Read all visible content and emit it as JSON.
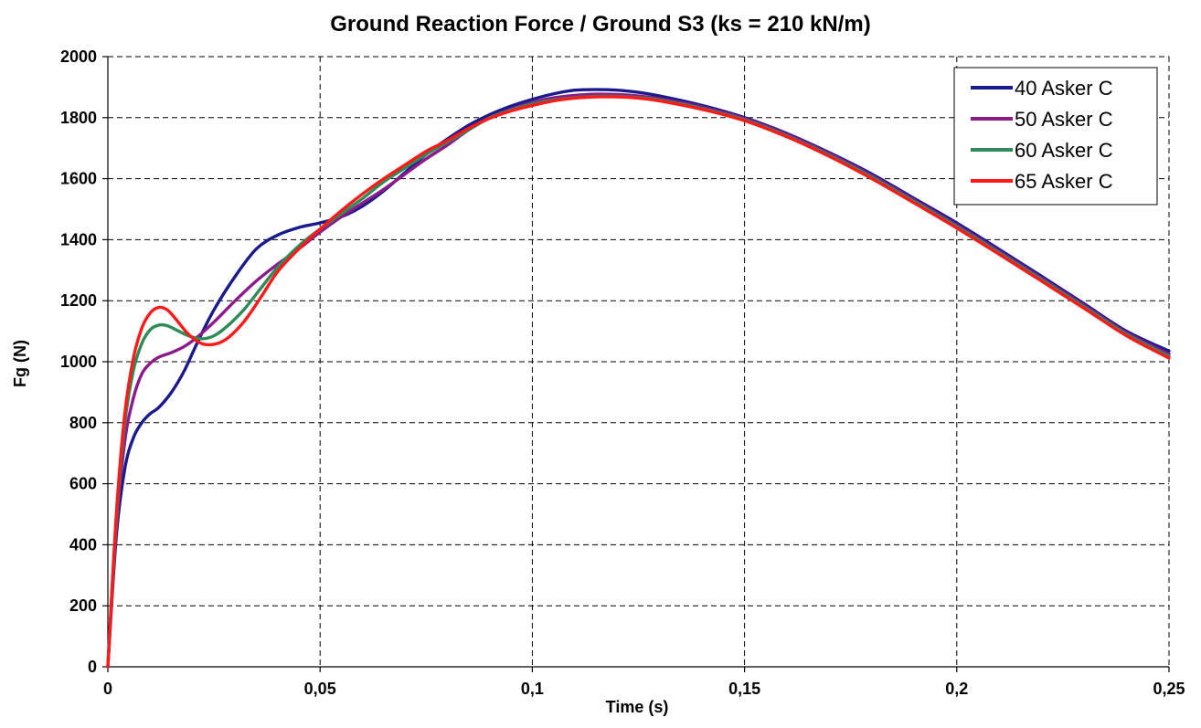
{
  "chart_data": {
    "type": "line",
    "title": "Ground Reaction Force / Ground S3 (ks = 210 kN/m)",
    "xlabel": "Time (s)",
    "ylabel": "Fg (N)",
    "xlim": [
      0,
      0.25
    ],
    "ylim": [
      0,
      2000
    ],
    "x_ticks": [
      0,
      0.05,
      0.1,
      0.15,
      0.2,
      0.25
    ],
    "x_tick_labels": [
      "0",
      "0,05",
      "0,1",
      "0,15",
      "0,2",
      "0,25"
    ],
    "y_ticks": [
      0,
      200,
      400,
      600,
      800,
      1000,
      1200,
      1400,
      1600,
      1800,
      2000
    ],
    "y_tick_labels": [
      "0",
      "200",
      "400",
      "600",
      "800",
      "1000",
      "1200",
      "1400",
      "1600",
      "1800",
      "2000"
    ],
    "grid": true,
    "legend_position": "top-right",
    "series": [
      {
        "name": "40 Asker C",
        "color": "#1a1a8c",
        "points": [
          [
            0,
            0
          ],
          [
            0.002,
            430
          ],
          [
            0.004,
            650
          ],
          [
            0.006,
            750
          ],
          [
            0.008,
            800
          ],
          [
            0.01,
            830
          ],
          [
            0.012,
            850
          ],
          [
            0.015,
            900
          ],
          [
            0.018,
            970
          ],
          [
            0.021,
            1060
          ],
          [
            0.025,
            1170
          ],
          [
            0.03,
            1280
          ],
          [
            0.035,
            1370
          ],
          [
            0.04,
            1415
          ],
          [
            0.045,
            1440
          ],
          [
            0.05,
            1455
          ],
          [
            0.055,
            1475
          ],
          [
            0.06,
            1510
          ],
          [
            0.065,
            1560
          ],
          [
            0.07,
            1620
          ],
          [
            0.075,
            1680
          ],
          [
            0.08,
            1730
          ],
          [
            0.085,
            1775
          ],
          [
            0.09,
            1810
          ],
          [
            0.095,
            1838
          ],
          [
            0.1,
            1860
          ],
          [
            0.105,
            1878
          ],
          [
            0.11,
            1890
          ],
          [
            0.115,
            1892
          ],
          [
            0.12,
            1890
          ],
          [
            0.125,
            1883
          ],
          [
            0.13,
            1871
          ],
          [
            0.14,
            1840
          ],
          [
            0.15,
            1800
          ],
          [
            0.16,
            1748
          ],
          [
            0.17,
            1685
          ],
          [
            0.18,
            1615
          ],
          [
            0.19,
            1535
          ],
          [
            0.2,
            1455
          ],
          [
            0.21,
            1368
          ],
          [
            0.22,
            1280
          ],
          [
            0.23,
            1190
          ],
          [
            0.24,
            1100
          ],
          [
            0.25,
            1035
          ]
        ]
      },
      {
        "name": "50 Asker C",
        "color": "#8b1a8b",
        "points": [
          [
            0,
            0
          ],
          [
            0.002,
            460
          ],
          [
            0.004,
            740
          ],
          [
            0.006,
            880
          ],
          [
            0.008,
            960
          ],
          [
            0.01,
            995
          ],
          [
            0.012,
            1015
          ],
          [
            0.015,
            1030
          ],
          [
            0.018,
            1050
          ],
          [
            0.021,
            1080
          ],
          [
            0.025,
            1130
          ],
          [
            0.03,
            1200
          ],
          [
            0.035,
            1265
          ],
          [
            0.04,
            1320
          ],
          [
            0.045,
            1370
          ],
          [
            0.05,
            1425
          ],
          [
            0.055,
            1475
          ],
          [
            0.06,
            1520
          ],
          [
            0.065,
            1565
          ],
          [
            0.07,
            1615
          ],
          [
            0.075,
            1665
          ],
          [
            0.08,
            1710
          ],
          [
            0.085,
            1760
          ],
          [
            0.09,
            1800
          ],
          [
            0.095,
            1828
          ],
          [
            0.1,
            1850
          ],
          [
            0.105,
            1865
          ],
          [
            0.11,
            1873
          ],
          [
            0.115,
            1877
          ],
          [
            0.12,
            1876
          ],
          [
            0.125,
            1871
          ],
          [
            0.13,
            1862
          ],
          [
            0.14,
            1835
          ],
          [
            0.15,
            1797
          ],
          [
            0.16,
            1745
          ],
          [
            0.17,
            1682
          ],
          [
            0.18,
            1610
          ],
          [
            0.19,
            1530
          ],
          [
            0.2,
            1448
          ],
          [
            0.21,
            1362
          ],
          [
            0.22,
            1274
          ],
          [
            0.23,
            1185
          ],
          [
            0.24,
            1095
          ],
          [
            0.25,
            1025
          ]
        ]
      },
      {
        "name": "60 Asker C",
        "color": "#2e8b57",
        "points": [
          [
            0,
            0
          ],
          [
            0.002,
            480
          ],
          [
            0.004,
            800
          ],
          [
            0.006,
            970
          ],
          [
            0.008,
            1060
          ],
          [
            0.01,
            1105
          ],
          [
            0.012,
            1120
          ],
          [
            0.014,
            1118
          ],
          [
            0.016,
            1105
          ],
          [
            0.019,
            1085
          ],
          [
            0.022,
            1075
          ],
          [
            0.025,
            1085
          ],
          [
            0.028,
            1115
          ],
          [
            0.032,
            1170
          ],
          [
            0.036,
            1240
          ],
          [
            0.04,
            1310
          ],
          [
            0.045,
            1380
          ],
          [
            0.05,
            1435
          ],
          [
            0.055,
            1485
          ],
          [
            0.06,
            1535
          ],
          [
            0.065,
            1590
          ],
          [
            0.07,
            1635
          ],
          [
            0.075,
            1680
          ],
          [
            0.08,
            1720
          ],
          [
            0.085,
            1760
          ],
          [
            0.09,
            1800
          ],
          [
            0.095,
            1825
          ],
          [
            0.1,
            1845
          ],
          [
            0.105,
            1858
          ],
          [
            0.11,
            1866
          ],
          [
            0.115,
            1870
          ],
          [
            0.12,
            1870
          ],
          [
            0.125,
            1866
          ],
          [
            0.13,
            1858
          ],
          [
            0.14,
            1830
          ],
          [
            0.15,
            1793
          ],
          [
            0.16,
            1740
          ],
          [
            0.17,
            1677
          ],
          [
            0.18,
            1605
          ],
          [
            0.19,
            1525
          ],
          [
            0.2,
            1443
          ],
          [
            0.21,
            1357
          ],
          [
            0.22,
            1269
          ],
          [
            0.23,
            1180
          ],
          [
            0.24,
            1090
          ],
          [
            0.25,
            1018
          ]
        ]
      },
      {
        "name": "65 Asker C",
        "color": "#ff1a1a",
        "points": [
          [
            0,
            0
          ],
          [
            0.002,
            500
          ],
          [
            0.004,
            830
          ],
          [
            0.006,
            1010
          ],
          [
            0.008,
            1110
          ],
          [
            0.01,
            1160
          ],
          [
            0.012,
            1178
          ],
          [
            0.014,
            1170
          ],
          [
            0.016,
            1140
          ],
          [
            0.019,
            1090
          ],
          [
            0.022,
            1060
          ],
          [
            0.025,
            1057
          ],
          [
            0.028,
            1075
          ],
          [
            0.032,
            1130
          ],
          [
            0.036,
            1210
          ],
          [
            0.04,
            1295
          ],
          [
            0.045,
            1370
          ],
          [
            0.05,
            1435
          ],
          [
            0.055,
            1495
          ],
          [
            0.06,
            1550
          ],
          [
            0.065,
            1600
          ],
          [
            0.07,
            1645
          ],
          [
            0.075,
            1690
          ],
          [
            0.08,
            1725
          ],
          [
            0.085,
            1765
          ],
          [
            0.09,
            1798
          ],
          [
            0.095,
            1822
          ],
          [
            0.1,
            1840
          ],
          [
            0.105,
            1855
          ],
          [
            0.11,
            1864
          ],
          [
            0.115,
            1868
          ],
          [
            0.12,
            1868
          ],
          [
            0.125,
            1864
          ],
          [
            0.13,
            1855
          ],
          [
            0.14,
            1827
          ],
          [
            0.15,
            1790
          ],
          [
            0.16,
            1737
          ],
          [
            0.17,
            1673
          ],
          [
            0.18,
            1600
          ],
          [
            0.19,
            1520
          ],
          [
            0.2,
            1438
          ],
          [
            0.21,
            1352
          ],
          [
            0.22,
            1264
          ],
          [
            0.23,
            1175
          ],
          [
            0.24,
            1085
          ],
          [
            0.25,
            1012
          ]
        ]
      }
    ]
  }
}
